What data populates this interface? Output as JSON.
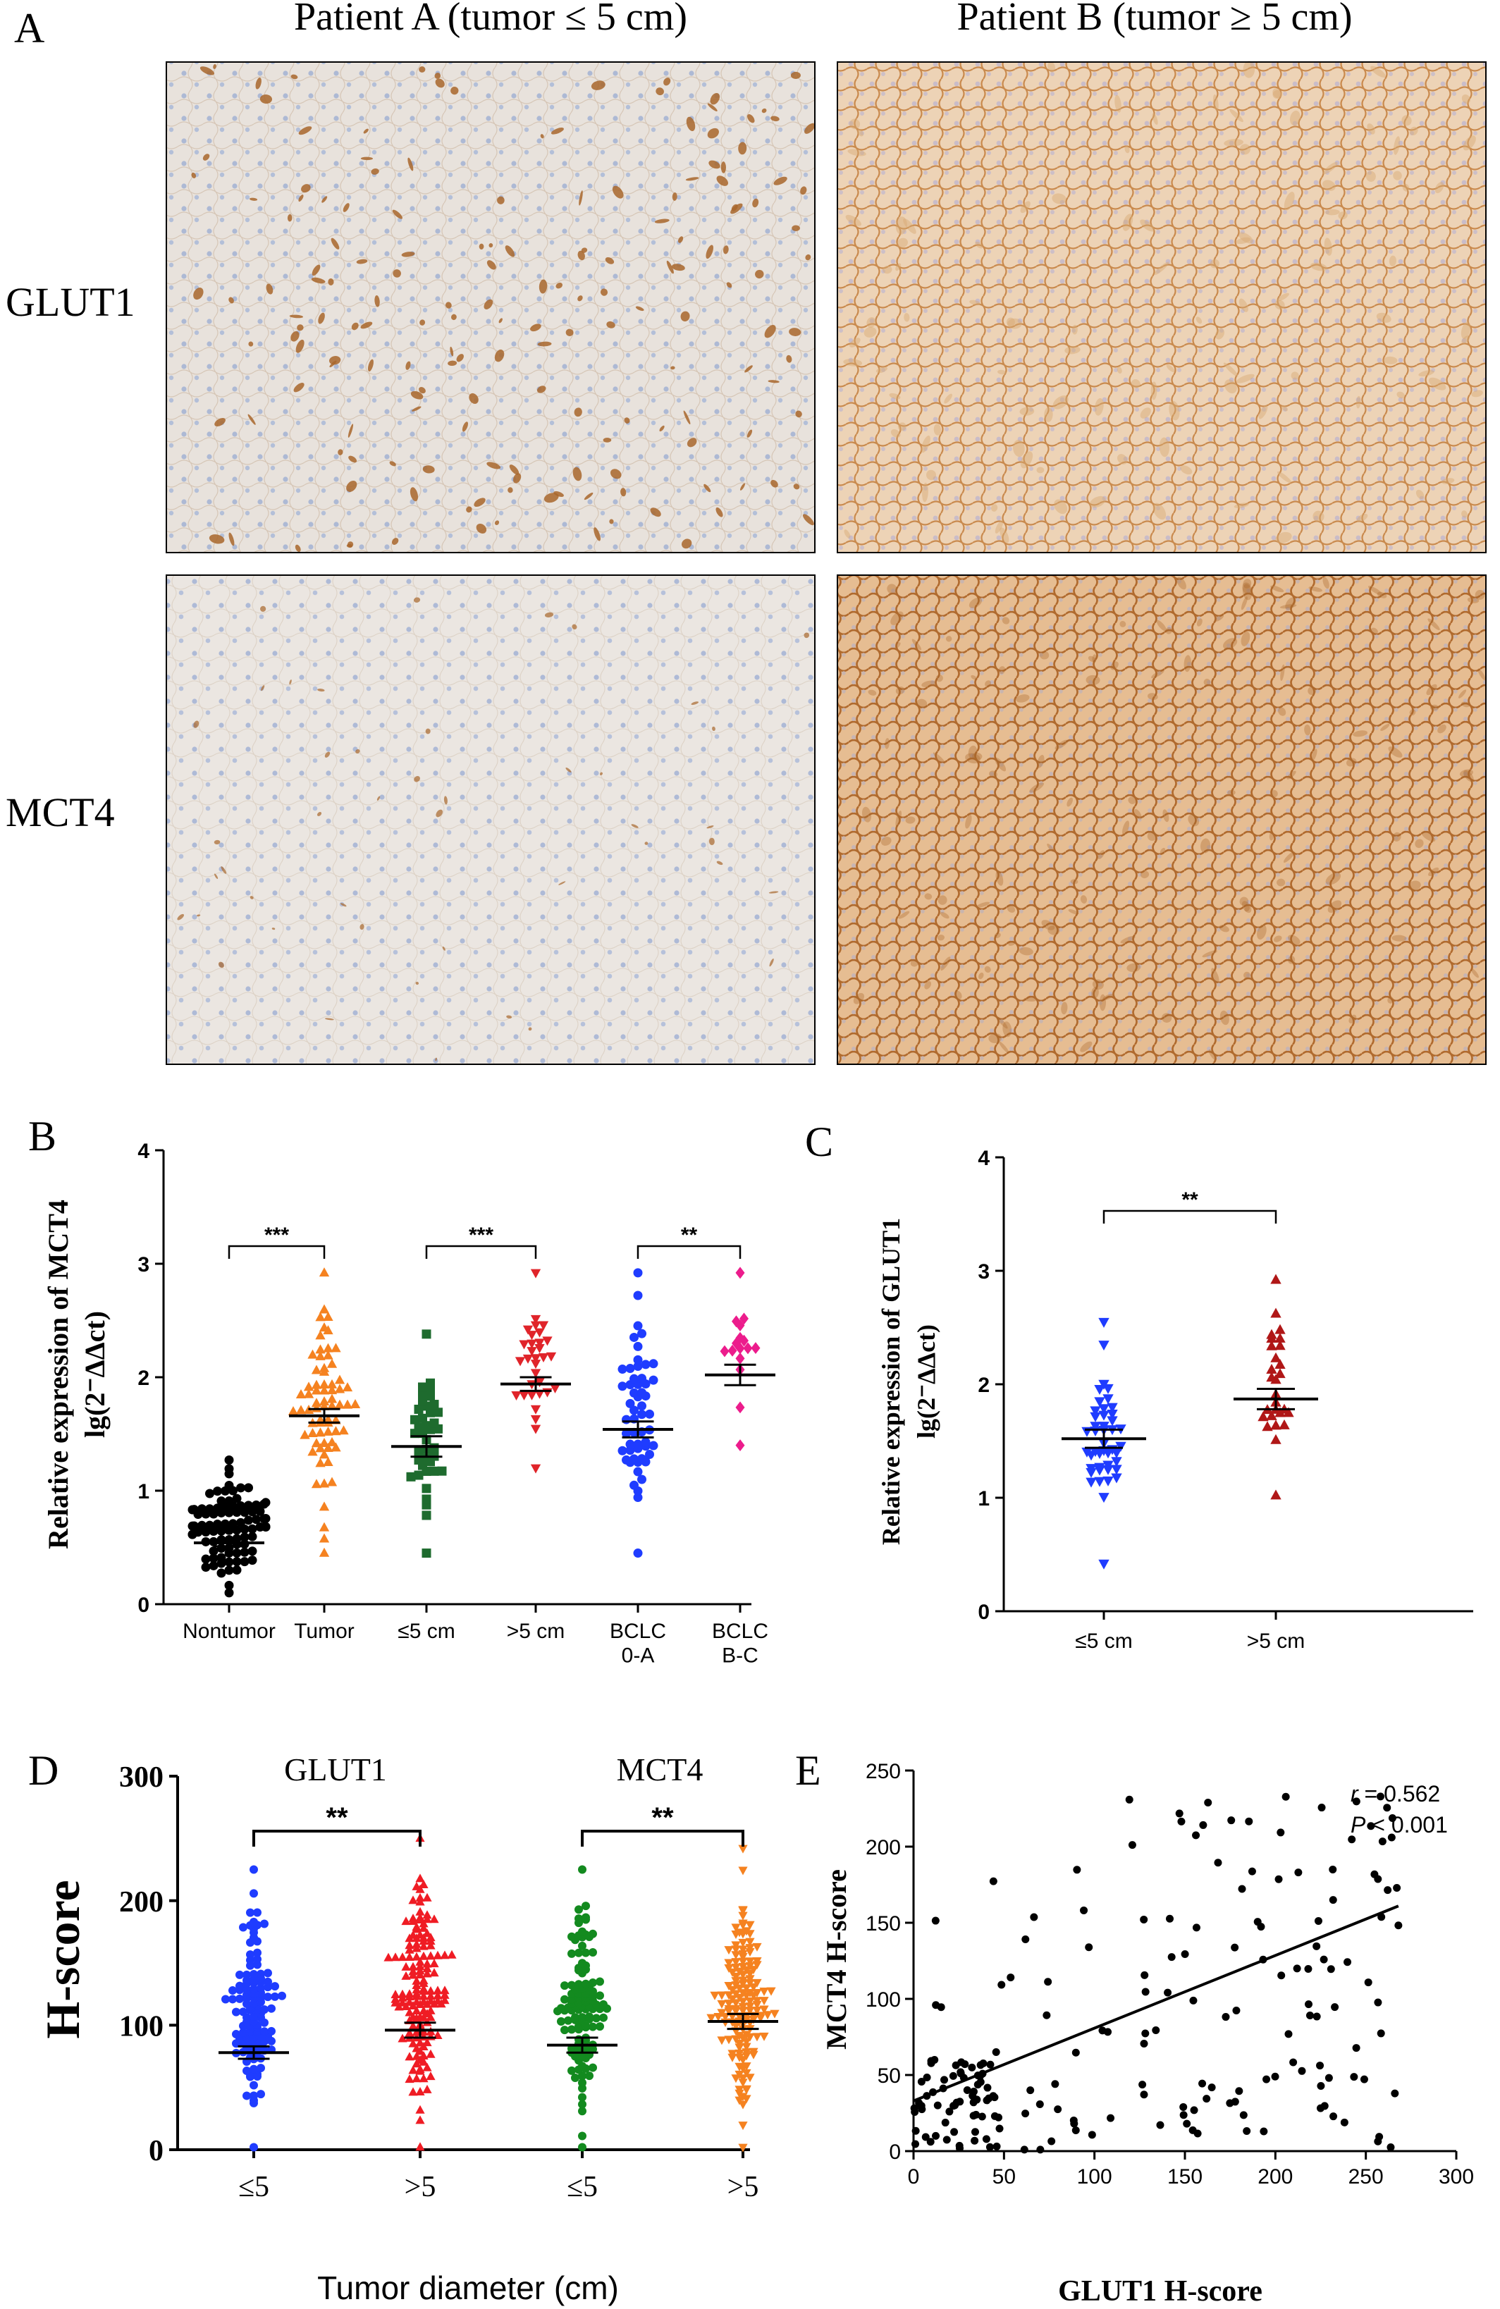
{
  "panelA": {
    "letter": "A",
    "col_titles": [
      "Patient A (tumor ≤ 5 cm)",
      "Patient B (tumor ≥ 5 cm)"
    ],
    "row_labels": [
      "GLUT1",
      "MCT4"
    ],
    "stain_colors": {
      "background": "#e9e3dd",
      "nuclei": "#a9b6d3",
      "brown": "#a8662c",
      "brown_light": "#d7a873"
    }
  },
  "chart_data": [
    {
      "id": "B",
      "type": "scatter",
      "letter": "B",
      "ylabel": "Relative  expression of MCT4",
      "ylabel2": "lg(2⁻ΔΔct)",
      "ylim": [
        0,
        4
      ],
      "yticks": [
        "0",
        "1",
        "2",
        "3",
        "4"
      ],
      "categories": [
        {
          "label": [
            "Nontumor"
          ],
          "color": "#000000",
          "marker": "circle",
          "n": 90,
          "mean": 0.54,
          "sem": 0.03,
          "min": 0.1,
          "max": 1.27
        },
        {
          "label": [
            "Tumor"
          ],
          "color": "#f58220",
          "marker": "triangle-up",
          "n": 70,
          "mean": 1.66,
          "sem": 0.06,
          "min": 0.45,
          "max": 2.92
        },
        {
          "label": [
            "≤5 cm"
          ],
          "color": "#1e6b2e",
          "marker": "square",
          "n": 40,
          "mean": 1.39,
          "sem": 0.09,
          "min": 0.45,
          "max": 2.38
        },
        {
          "label": [
            ">5 cm"
          ],
          "color": "#e0242a",
          "marker": "triangle-down",
          "n": 32,
          "mean": 1.94,
          "sem": 0.06,
          "min": 1.2,
          "max": 2.92
        },
        {
          "label": [
            "BCLC",
            "0-A"
          ],
          "color": "#1f3cff",
          "marker": "circle",
          "n": 55,
          "mean": 1.54,
          "sem": 0.07,
          "min": 0.45,
          "max": 2.92
        },
        {
          "label": [
            "BCLC",
            "B-C"
          ],
          "color": "#ec1c8c",
          "marker": "diamond",
          "n": 16,
          "mean": 2.02,
          "sem": 0.09,
          "min": 1.4,
          "max": 2.92
        }
      ],
      "significance": [
        {
          "from": 0,
          "to": 1,
          "label": "***"
        },
        {
          "from": 2,
          "to": 3,
          "label": "***"
        },
        {
          "from": 4,
          "to": 5,
          "label": "**"
        }
      ]
    },
    {
      "id": "C",
      "type": "scatter",
      "letter": "C",
      "ylabel": "Relative expression of GLUT1",
      "ylabel2": "lg(2⁻ΔΔct)",
      "ylim": [
        0,
        4
      ],
      "yticks": [
        "0",
        "1",
        "2",
        "3",
        "4"
      ],
      "categories": [
        {
          "label": [
            "≤5 cm"
          ],
          "color": "#1f3cff",
          "marker": "triangle-down",
          "n": 45,
          "mean": 1.52,
          "sem": 0.08,
          "min": 0.42,
          "max": 2.55
        },
        {
          "label": [
            ">5 cm"
          ],
          "color": "#b01717",
          "marker": "triangle-up",
          "n": 28,
          "mean": 1.87,
          "sem": 0.09,
          "min": 1.02,
          "max": 2.92
        }
      ],
      "significance": [
        {
          "from": 0,
          "to": 1,
          "label": "**"
        }
      ]
    },
    {
      "id": "D",
      "type": "scatter",
      "letter": "D",
      "ylabel": "H-score",
      "xlabel": "Tumor diameter (cm)",
      "ylim": [
        0,
        300
      ],
      "yticks": [
        "0",
        "100",
        "200",
        "300"
      ],
      "group_titles": [
        "GLUT1",
        "MCT4"
      ],
      "categories": [
        {
          "label": [
            "≤5"
          ],
          "color": "#1f3cff",
          "marker": "circle",
          "n": 120,
          "mean": 78,
          "sem": 5,
          "min": 2,
          "max": 225
        },
        {
          "label": [
            ">5"
          ],
          "color": "#ef1c24",
          "marker": "triangle-up",
          "n": 150,
          "mean": 96,
          "sem": 6,
          "min": 2,
          "max": 250
        },
        {
          "label": [
            "≤5"
          ],
          "color": "#138a1f",
          "marker": "circle",
          "n": 115,
          "mean": 84,
          "sem": 6,
          "min": 2,
          "max": 225
        },
        {
          "label": [
            ">5"
          ],
          "color": "#f58220",
          "marker": "triangle-down",
          "n": 150,
          "mean": 103,
          "sem": 6,
          "min": 2,
          "max": 242
        }
      ],
      "significance": [
        {
          "from": 0,
          "to": 1,
          "label": "**"
        },
        {
          "from": 2,
          "to": 3,
          "label": "**"
        }
      ]
    },
    {
      "id": "E",
      "type": "scatter",
      "letter": "E",
      "xlabel": "GLUT1 H-score",
      "ylabel": "MCT4 H-score",
      "xlim": [
        0,
        300
      ],
      "ylim": [
        0,
        250
      ],
      "xticks": [
        "0",
        "50",
        "100",
        "150",
        "200",
        "250",
        "300"
      ],
      "yticks": [
        "0",
        "50",
        "100",
        "150",
        "200",
        "250"
      ],
      "annotation_r_symbol": "r",
      "annotation_r_value": " = 0.562",
      "annotation_p_symbol": "P",
      "annotation_p_value": " < 0.001",
      "regression": {
        "x": [
          0,
          268
        ],
        "y": [
          33,
          161
        ]
      },
      "n_points": 200,
      "color": "#000000"
    }
  ]
}
